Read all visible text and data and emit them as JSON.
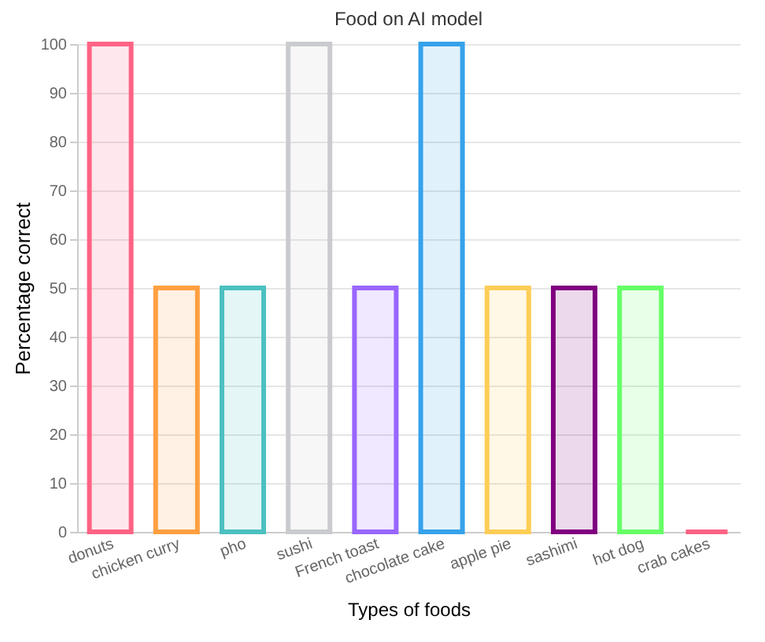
{
  "chart_data": {
    "type": "bar",
    "title": "Food on AI model",
    "xlabel": "Types of foods",
    "ylabel": "Percentage correct",
    "categories": [
      "donuts",
      "chicken curry",
      "pho",
      "sushi",
      "French toast",
      "chocolate cake",
      "apple pie",
      "sashimi",
      "hot dog",
      "crab cakes"
    ],
    "values": [
      100,
      50,
      50,
      100,
      50,
      100,
      50,
      50,
      50,
      0
    ],
    "colors": [
      "#ff6384",
      "#ff9f40",
      "#4bc0c0",
      "#c9cbcf",
      "#9966ff",
      "#36a2eb",
      "#ffcd56",
      "#800080",
      "#66ff66",
      "#ff6384"
    ],
    "ylim": [
      0,
      100
    ],
    "yticks": [
      0,
      10,
      20,
      30,
      40,
      50,
      60,
      70,
      80,
      90,
      100
    ],
    "grid": "y"
  }
}
